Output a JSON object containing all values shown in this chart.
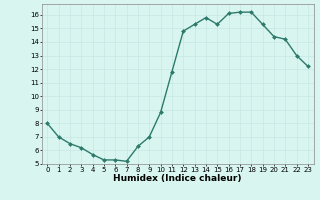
{
  "x": [
    0,
    1,
    2,
    3,
    4,
    5,
    6,
    7,
    8,
    9,
    10,
    11,
    12,
    13,
    14,
    15,
    16,
    17,
    18,
    19,
    20,
    21,
    22,
    23
  ],
  "y": [
    8.0,
    7.0,
    6.5,
    6.2,
    5.7,
    5.3,
    5.3,
    5.2,
    6.3,
    7.0,
    8.8,
    11.8,
    14.8,
    15.3,
    15.8,
    15.3,
    16.1,
    16.2,
    16.2,
    15.3,
    14.4,
    14.2,
    13.0,
    12.2
  ],
  "xlabel": "Humidex (Indice chaleur)",
  "line_color": "#2d7a6b",
  "marker": "D",
  "marker_size": 2.0,
  "bg_color": "#d8f5f0",
  "grid_color": "#c8e8e2",
  "xlim": [
    -0.5,
    23.5
  ],
  "ylim": [
    5,
    16.8
  ],
  "yticks": [
    5,
    6,
    7,
    8,
    9,
    10,
    11,
    12,
    13,
    14,
    15,
    16
  ],
  "xticks": [
    0,
    1,
    2,
    3,
    4,
    5,
    6,
    7,
    8,
    9,
    10,
    11,
    12,
    13,
    14,
    15,
    16,
    17,
    18,
    19,
    20,
    21,
    22,
    23
  ],
  "tick_fontsize": 5.0,
  "xlabel_fontsize": 6.5,
  "linewidth": 1.0
}
